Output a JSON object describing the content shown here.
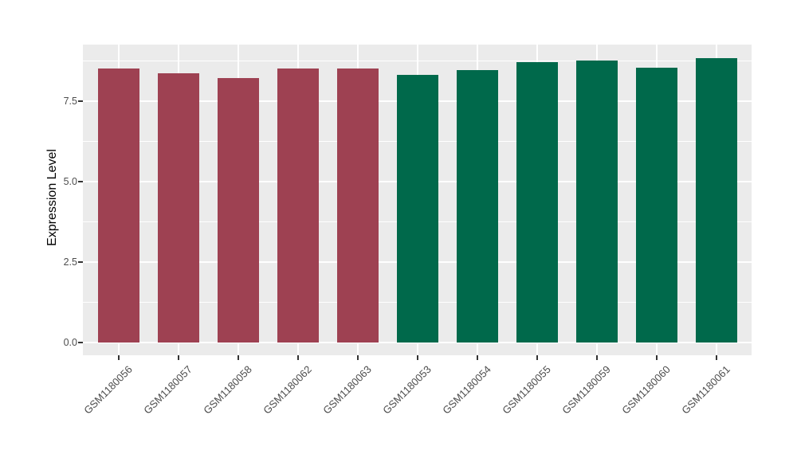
{
  "figure": {
    "background": "#FFFFFF",
    "panel_background": "#EBEBEB",
    "grid_color": "#FFFFFF",
    "axis_text_color": "#4D4D4D",
    "axis_title_color": "#000000",
    "tick_color": "#333333"
  },
  "chart_data": {
    "type": "bar",
    "title": "",
    "xlabel": "",
    "ylabel": "Expression Level",
    "categories": [
      "GSM1180056",
      "GSM1180057",
      "GSM1180058",
      "GSM1180062",
      "GSM1180063",
      "GSM1180053",
      "GSM1180054",
      "GSM1180055",
      "GSM1180059",
      "GSM1180060",
      "GSM1180061"
    ],
    "values": [
      8.51,
      8.37,
      8.23,
      8.51,
      8.51,
      8.32,
      8.47,
      8.71,
      8.76,
      8.54,
      8.84
    ],
    "bar_colors": [
      "#9E4152",
      "#9E4152",
      "#9E4152",
      "#9E4152",
      "#9E4152",
      "#00694B",
      "#00694B",
      "#00694B",
      "#00694B",
      "#00694B",
      "#00694B"
    ],
    "color_groups": [
      {
        "color": "#9E4152",
        "samples": [
          "GSM1180056",
          "GSM1180057",
          "GSM1180058",
          "GSM1180062",
          "GSM1180063"
        ]
      },
      {
        "color": "#00694B",
        "samples": [
          "GSM1180053",
          "GSM1180054",
          "GSM1180055",
          "GSM1180059",
          "GSM1180060",
          "GSM1180061"
        ]
      }
    ],
    "yticks": [
      {
        "value": 0,
        "label": "0.0"
      },
      {
        "value": 2.5,
        "label": "2.5"
      },
      {
        "value": 5,
        "label": "5.0"
      },
      {
        "value": 7.5,
        "label": "7.5"
      }
    ],
    "minor_gridlines": [
      1.25,
      3.75,
      6.25,
      8.75
    ],
    "ylim": [
      0,
      9.26
    ],
    "bar_width_ratio": 0.7,
    "grid": true,
    "legend_position": "none"
  }
}
